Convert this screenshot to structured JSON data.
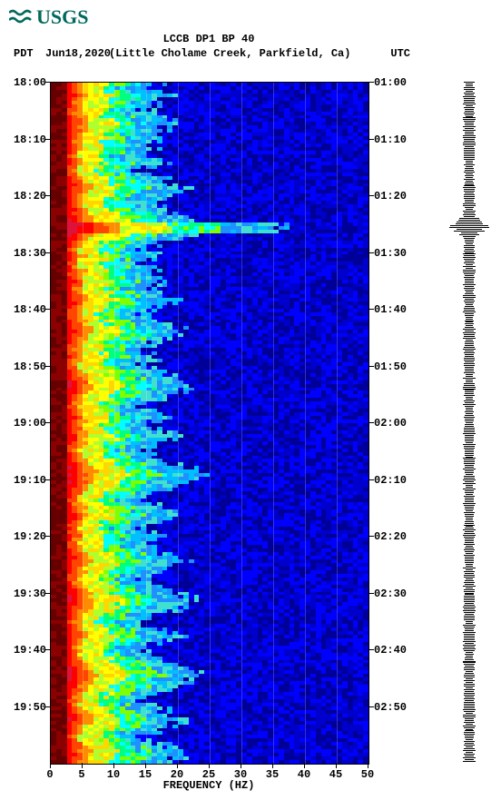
{
  "logo": {
    "text": "USGS",
    "color": "#00695c"
  },
  "title": "LCCB DP1 BP 40",
  "header": {
    "pdt_label": "PDT",
    "date": "Jun18,2020",
    "location": "(Little Cholame Creek, Parkfield, Ca)",
    "utc_label": "UTC"
  },
  "chart": {
    "type": "spectrogram",
    "x_title": "FREQUENCY (HZ)",
    "xlim": [
      0,
      50
    ],
    "x_ticks": [
      0,
      5,
      10,
      15,
      20,
      25,
      30,
      35,
      40,
      45,
      50
    ],
    "gridlines_x": [
      5,
      10,
      15,
      20,
      25,
      30,
      35,
      40,
      45
    ],
    "y_left_ticks": [
      "18:00",
      "18:10",
      "18:20",
      "18:30",
      "18:40",
      "18:50",
      "19:00",
      "19:10",
      "19:20",
      "19:30",
      "19:40",
      "19:50"
    ],
    "y_right_ticks": [
      "01:00",
      "01:10",
      "01:20",
      "01:30",
      "01:40",
      "01:50",
      "02:00",
      "02:10",
      "02:20",
      "02:30",
      "02:40",
      "02:50"
    ],
    "n_rows": 190,
    "palette": [
      "#660000",
      "#8b0000",
      "#b22222",
      "#dc143c",
      "#ff0000",
      "#ff4500",
      "#ff8c00",
      "#ffa500",
      "#ffd700",
      "#ffff00",
      "#adff2f",
      "#7fff00",
      "#00ff7f",
      "#00ffff",
      "#40e0d0",
      "#00bfff",
      "#1e90ff",
      "#0000ff",
      "#0000cc",
      "#000099"
    ],
    "rows_intensity": [
      12,
      11,
      12,
      13,
      12,
      11,
      12,
      10,
      11,
      12,
      13,
      14,
      13,
      12,
      11,
      12,
      11,
      11,
      12,
      11,
      10,
      11,
      12,
      11,
      10,
      11,
      12,
      13,
      14,
      15,
      14,
      13,
      12,
      11,
      12,
      13,
      14,
      15,
      16,
      18,
      20,
      19,
      16,
      14,
      12,
      11,
      10,
      11,
      12,
      11,
      10,
      11,
      12,
      11,
      12,
      13,
      12,
      11,
      12,
      13,
      14,
      13,
      12,
      11,
      10,
      11,
      12,
      13,
      14,
      15,
      14,
      13,
      12,
      11,
      10,
      11,
      12,
      11,
      10,
      11,
      12,
      13,
      14,
      15,
      16,
      15,
      14,
      13,
      12,
      11,
      10,
      11,
      12,
      13,
      12,
      11,
      12,
      13,
      14,
      13,
      12,
      11,
      10,
      11,
      12,
      13,
      14,
      15,
      16,
      17,
      16,
      15,
      14,
      13,
      12,
      11,
      10,
      11,
      12,
      13,
      14,
      13,
      12,
      11,
      10,
      11,
      12,
      11,
      10,
      11,
      12,
      13,
      14,
      15,
      14,
      13,
      12,
      11,
      10,
      11,
      12,
      13,
      14,
      15,
      16,
      15,
      14,
      13,
      12,
      11,
      10,
      11,
      12,
      13,
      14,
      13,
      12,
      11,
      10,
      11,
      12,
      13,
      14,
      15,
      16,
      17,
      16,
      15,
      14,
      13,
      12,
      11,
      10,
      11,
      12,
      13,
      14,
      15,
      14,
      13,
      12,
      11,
      10,
      11,
      12,
      13,
      14,
      15,
      14,
      13
    ],
    "event_row": 40,
    "event_intensity": 26,
    "background_color": "#ffffff"
  },
  "waveform": {
    "baseline_amp": 4,
    "event_row": 40,
    "event_amp": 18
  },
  "font": {
    "family": "Courier New",
    "tick_size": 12,
    "title_size": 12,
    "weight": "bold"
  }
}
